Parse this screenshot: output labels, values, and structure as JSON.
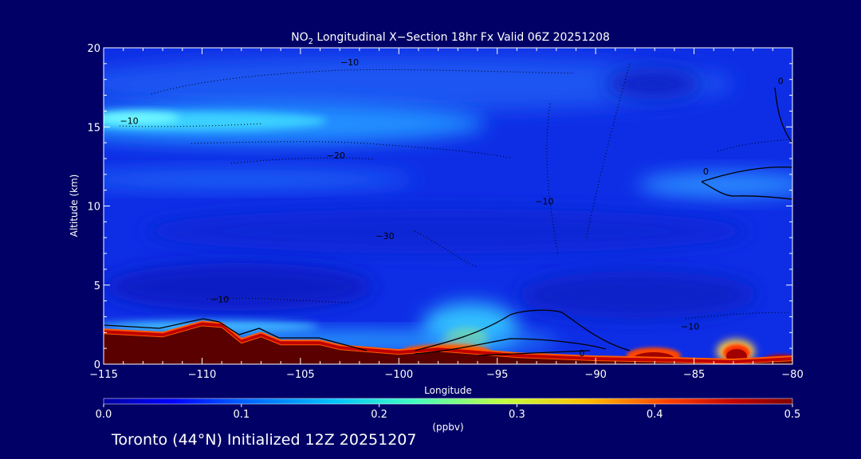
{
  "chart_data": {
    "type": "heatmap",
    "title_prefix": "NO",
    "title_subscript": "2",
    "title_rest": " Longitudinal X−Section 18hr  Fx Valid 06Z 20251208",
    "xlabel": "Longitude",
    "ylabel": "Altitude (km)",
    "xlim": [
      -115,
      -80
    ],
    "ylim": [
      0,
      20
    ],
    "x_ticks": [
      -115,
      -110,
      -105,
      -100,
      -95,
      -90,
      -85,
      -80
    ],
    "x_tick_labels": [
      "−115",
      "−110",
      "−105",
      "−100",
      "−95",
      "−90",
      "−85",
      "−80"
    ],
    "y_ticks": [
      0,
      5,
      10,
      15,
      20
    ],
    "y_tick_labels": [
      "0",
      "5",
      "10",
      "15",
      "20"
    ],
    "colorbar": {
      "range": [
        0.0,
        0.5
      ],
      "ticks": [
        0.0,
        0.1,
        0.2,
        0.3,
        0.4,
        0.5
      ],
      "tick_labels": [
        "0.0",
        "0.1",
        "0.2",
        "0.3",
        "0.4",
        "0.5"
      ],
      "units": "(ppbv)",
      "colors": [
        "#0000a0",
        "#0000ff",
        "#0060ff",
        "#00c0ff",
        "#40ffc0",
        "#c0ff40",
        "#ffc000",
        "#ff4000",
        "#c00000",
        "#800000"
      ]
    },
    "terrain_km": [
      [
        -115,
        2.2
      ],
      [
        -112,
        2.0
      ],
      [
        -110,
        2.7
      ],
      [
        -109,
        2.6
      ],
      [
        -108,
        1.6
      ],
      [
        -107,
        2.0
      ],
      [
        -106,
        1.5
      ],
      [
        -104,
        1.5
      ],
      [
        -103,
        1.2
      ],
      [
        -100,
        0.9
      ],
      [
        -98,
        1.1
      ],
      [
        -96,
        0.9
      ],
      [
        -94,
        0.7
      ],
      [
        -90,
        0.5
      ],
      [
        -86,
        0.4
      ],
      [
        -83,
        0.3
      ],
      [
        -80,
        0.5
      ]
    ],
    "high_no2_bands": [
      {
        "name": "upper layer (~15 km)",
        "lon_start": -115,
        "lon_end": -98,
        "alt_km": 15,
        "value_ppbv": 0.15
      },
      {
        "name": "mid layer (~11.5 km)",
        "lon_start": -88,
        "lon_end": -80,
        "alt_km": 11.5,
        "value_ppbv": 0.09
      }
    ],
    "surface_hotspots": [
      {
        "lon": -97,
        "alt_km": 0.9,
        "value_ppbv": 0.45
      },
      {
        "lon": -87,
        "alt_km": 0.6,
        "value_ppbv": 0.45
      },
      {
        "lon": -82.5,
        "alt_km": 0.8,
        "value_ppbv": 0.5
      }
    ],
    "contour_labels": [
      {
        "text": "−10",
        "lon": -102.5,
        "alt": 18.9
      },
      {
        "text": "−10",
        "lon": -113.7,
        "alt": 15.2
      },
      {
        "text": "−20",
        "lon": -103.2,
        "alt": 13.0
      },
      {
        "text": "−10",
        "lon": -92.6,
        "alt": 10.1
      },
      {
        "text": "−30",
        "lon": -100.7,
        "alt": 7.9
      },
      {
        "text": "−10",
        "lon": -109.1,
        "alt": 3.9
      },
      {
        "text": "−10",
        "lon": -85.2,
        "alt": 2.2
      },
      {
        "text": "0",
        "lon": -84.4,
        "alt": 12.0
      },
      {
        "text": "0",
        "lon": -80.6,
        "alt": 17.7
      },
      {
        "text": "0",
        "lon": -90.7,
        "alt": 0.5
      }
    ]
  },
  "footer": "Toronto (44°N) Initialized 12Z 20251207"
}
